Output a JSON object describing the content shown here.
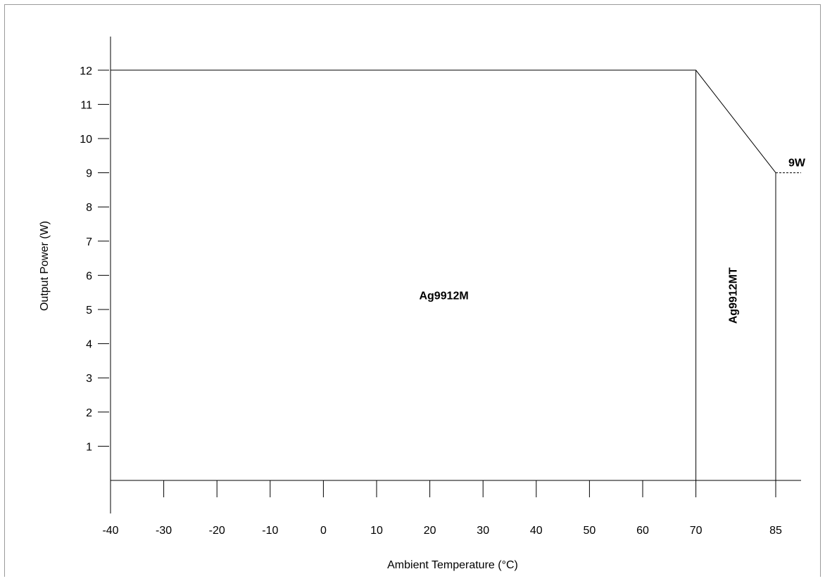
{
  "chart_data": {
    "type": "line",
    "title": "",
    "xlabel": "Ambient Temperature (°C)",
    "ylabel": "Output Power (W)",
    "x_ticks": [
      -40,
      -30,
      -20,
      -10,
      0,
      10,
      20,
      30,
      40,
      50,
      60,
      70,
      85
    ],
    "y_ticks": [
      1,
      2,
      3,
      4,
      5,
      6,
      7,
      8,
      9,
      10,
      11,
      12
    ],
    "xlim": [
      -40,
      90
    ],
    "ylim": [
      0,
      12.5
    ],
    "grid": false,
    "series": [
      {
        "x": [
          -40,
          70,
          85
        ],
        "y": [
          12,
          12,
          9
        ]
      }
    ],
    "region_labels": [
      {
        "text": "Ag9912M",
        "x": 20,
        "y": 5.2,
        "orientation": "horizontal"
      },
      {
        "text": "Ag9912MT",
        "x": 77,
        "y": 5.2,
        "orientation": "vertical"
      }
    ],
    "annotation": {
      "text": "9W",
      "x": 85,
      "y": 9
    },
    "vertical_markers": [
      70,
      85
    ]
  }
}
